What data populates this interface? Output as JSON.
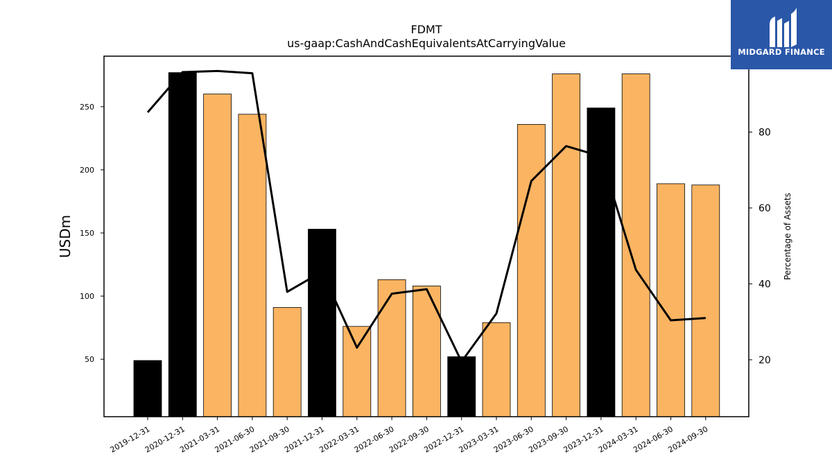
{
  "chart_data": {
    "type": "bar",
    "title": "FDMT",
    "subtitle": "us-gaap:CashAndCashEquivalentsAtCarryingValue",
    "ylabel": "USDm",
    "y2label": "Percentage of Assets",
    "categories": [
      "2019-12-31",
      "2020-12-31",
      "2021-03-31",
      "2021-06-30",
      "2021-09-30",
      "2021-12-31",
      "2022-03-31",
      "2022-06-30",
      "2022-09-30",
      "2022-12-31",
      "2023-03-31",
      "2023-06-30",
      "2023-09-30",
      "2023-12-31",
      "2024-03-31",
      "2024-06-30",
      "2024-09-30"
    ],
    "series": [
      {
        "type": "bar",
        "values": [
          49,
          277,
          260,
          244,
          91,
          153,
          76,
          113,
          108,
          52,
          79,
          236,
          276,
          249,
          276,
          189,
          188
        ],
        "annual": [
          true,
          true,
          false,
          false,
          false,
          true,
          false,
          false,
          false,
          true,
          false,
          false,
          false,
          true,
          false,
          false,
          false
        ]
      },
      {
        "type": "line",
        "axis": "right",
        "values": [
          85.2,
          95.8,
          96.1,
          95.5,
          37.9,
          43.2,
          23.2,
          37.4,
          38.6,
          19.5,
          32.2,
          67.1,
          76.3,
          73.6,
          43.7,
          30.4,
          31.0
        ]
      }
    ],
    "ylim": [
      4.5,
      290
    ],
    "yticks": [
      50,
      100,
      150,
      200,
      250
    ],
    "y2lim": [
      5,
      100
    ],
    "y2ticks": [
      20,
      40,
      60,
      80
    ],
    "grid": false,
    "colors": {
      "quarterly": "#fbb462",
      "annual": "#000000",
      "line": "#000000"
    }
  },
  "brand": {
    "name": "MIDGARD FINANCE",
    "color": "#2a57a8"
  }
}
